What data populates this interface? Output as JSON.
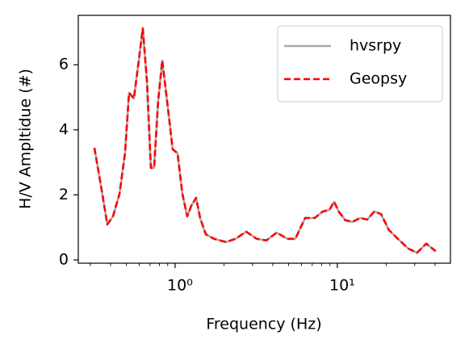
{
  "chart_data": {
    "type": "line",
    "xlabel": "Frequency (Hz)",
    "ylabel": "H/V Ampltidue (#)",
    "x": [
      0.318,
      0.349,
      0.382,
      0.414,
      0.454,
      0.491,
      0.52,
      0.557,
      0.597,
      0.632,
      0.67,
      0.709,
      0.742,
      0.786,
      0.833,
      0.892,
      0.966,
      1.035,
      1.109,
      1.188,
      1.257,
      1.347,
      1.426,
      1.545,
      1.733,
      2.06,
      2.36,
      2.74,
      3.18,
      3.65,
      4.23,
      4.91,
      5.51,
      6.33,
      7.25,
      8.14,
      8.94,
      9.55,
      10.2,
      11.2,
      12.4,
      13.8,
      15.3,
      16.9,
      18.6,
      20.8,
      23.6,
      27.4,
      31.0,
      35.3,
      40.4
    ],
    "series": [
      {
        "name": "hvsrpy",
        "color": "#aaaaaa",
        "style": "solid",
        "values": [
          3.45,
          2.28,
          1.09,
          1.34,
          2.03,
          3.28,
          5.14,
          4.96,
          6.13,
          7.12,
          5.51,
          2.83,
          2.83,
          4.89,
          6.13,
          4.89,
          3.4,
          3.28,
          2.03,
          1.34,
          1.66,
          1.91,
          1.29,
          0.79,
          0.65,
          0.55,
          0.65,
          0.87,
          0.65,
          0.6,
          0.84,
          0.65,
          0.65,
          1.29,
          1.29,
          1.49,
          1.54,
          1.79,
          1.49,
          1.22,
          1.17,
          1.29,
          1.24,
          1.49,
          1.41,
          0.92,
          0.65,
          0.35,
          0.22,
          0.5,
          0.27
        ]
      },
      {
        "name": "Geopsy",
        "color": "#ff0000",
        "style": "dashed",
        "values": [
          3.45,
          2.28,
          1.09,
          1.34,
          2.03,
          3.28,
          5.14,
          4.96,
          6.13,
          7.12,
          5.51,
          2.83,
          2.83,
          4.89,
          6.13,
          4.89,
          3.4,
          3.28,
          2.03,
          1.34,
          1.66,
          1.91,
          1.29,
          0.79,
          0.65,
          0.55,
          0.65,
          0.87,
          0.65,
          0.6,
          0.84,
          0.65,
          0.65,
          1.29,
          1.29,
          1.49,
          1.54,
          1.79,
          1.49,
          1.22,
          1.17,
          1.29,
          1.24,
          1.49,
          1.41,
          0.92,
          0.65,
          0.35,
          0.22,
          0.5,
          0.27
        ]
      }
    ],
    "xscale": "log",
    "xlim": [
      0.253,
      49.8
    ],
    "xticks": [
      {
        "value": 1,
        "label": "10⁰"
      },
      {
        "value": 10,
        "label": "10¹"
      }
    ],
    "xminorticks": [
      0.3,
      0.4,
      0.5,
      0.6,
      0.7,
      0.8,
      0.9,
      2,
      3,
      4,
      5,
      6,
      7,
      8,
      9,
      20,
      30,
      40
    ],
    "ylim": [
      -0.1,
      7.52
    ],
    "yticks": [
      0,
      2,
      4,
      6
    ],
    "legend": "upper right"
  }
}
